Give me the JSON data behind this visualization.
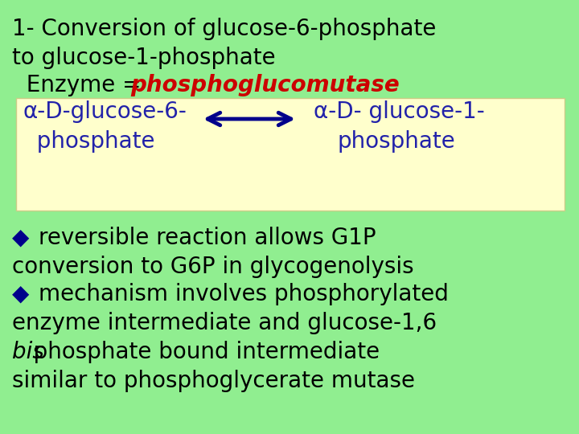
{
  "bg_color": "#90EE90",
  "box_color": "#FFFFCC",
  "title_line1": "1- Conversion of glucose-6-phosphate",
  "title_line2": "to glucose-1-phosphate",
  "enzyme_prefix": "  Enzyme = ",
  "enzyme_name": "phosphoglucomutase",
  "enzyme_color": "#CC0000",
  "left_compound_line1": "α-D-glucose-6-",
  "left_compound_line2": "  phosphate",
  "right_compound_line1": "α-D- glucose-1-",
  "right_compound_line2": "phosphate",
  "compound_color": "#2222AA",
  "arrow_color": "#00008B",
  "bullet_color": "#00008B",
  "bullet1_text": "reversible reaction allows G1P",
  "bullet1_line2": "conversion to G6P in glycogenolysis",
  "bullet2_text": "mechanism involves phosphorylated",
  "bullet2_line2": "enzyme intermediate and glucose-1,6",
  "bullet2_line3_italic": "bis",
  "bullet2_line3_normal": "phosphate bound intermediate",
  "bullet2_line4": "similar to phosphoglycerate mutase",
  "text_color": "#000000",
  "title_fontsize": 20,
  "compound_fontsize": 20,
  "bullet_fontsize": 20
}
